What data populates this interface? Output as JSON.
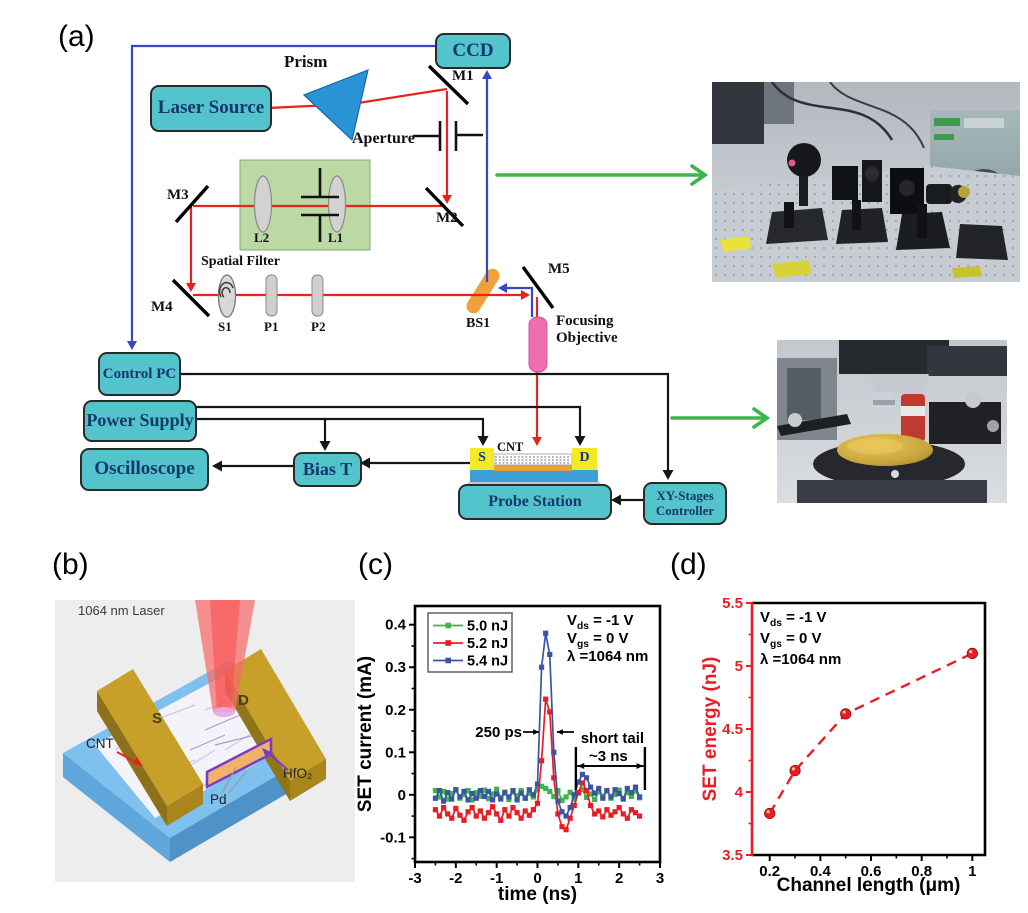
{
  "panels": {
    "a": "(a)",
    "b": "(b)",
    "c": "(c)",
    "d": "(d)"
  },
  "diagram": {
    "boxes": {
      "laser_source": "Laser Source",
      "ccd": "CCD",
      "control_pc": "Control PC",
      "power_supply": "Power Supply",
      "oscilloscope": "Oscilloscope",
      "bias_t": "Bias T",
      "probe_station": "Probe Station",
      "xy_stages_line1": "XY-Stages",
      "xy_stages_line2": "Controller"
    },
    "optics": {
      "prism": "Prism",
      "aperture": "Aperture",
      "m1": "M1",
      "m2": "M2",
      "m3": "M3",
      "m4": "M4",
      "m5": "M5",
      "l1": "L1",
      "l2": "L2",
      "spatial_filter": "Spatial Filter",
      "s1": "S1",
      "p1": "P1",
      "p2": "P2",
      "bs1": "BS1",
      "focusing_objective_line1": "Focusing",
      "focusing_objective_line2": "Objective"
    },
    "device": {
      "cnt": "CNT",
      "source": "S",
      "drain": "D"
    },
    "colors": {
      "box_fill": "#53c3cc",
      "box_text": "#13386b",
      "beam_red": "#e8231d",
      "beam_blue": "#3a45c4",
      "arrow_green": "#3cb54a",
      "wire_black": "#161616",
      "prism_blue": "#2a93d5",
      "bs1_orange": "#f0a13a",
      "objective_pink": "#ee6fad",
      "lens_box_green": "#bcd9a5"
    }
  },
  "panel_b": {
    "labels": {
      "laser": "1064 nm Laser",
      "source": "S",
      "drain": "D",
      "cnt": "CNT",
      "pd": "Pd",
      "hfo2": "HfO₂"
    }
  },
  "chart_data": [
    {
      "type": "line",
      "title": "SET current transients",
      "xlabel": "time (ns)",
      "ylabel": "SET current (mA)",
      "xlim": [
        -3,
        3
      ],
      "ylim": [
        -0.158,
        0.444
      ],
      "grid": false,
      "legend_position": "top-left",
      "xticks": {
        "major": [
          -3,
          -2,
          -1,
          0,
          1,
          2,
          3
        ],
        "labels": [
          "-3",
          "-2",
          "-1",
          "0",
          "1",
          "2",
          "3"
        ],
        "minor_step": 0.5
      },
      "yticks": {
        "major": [
          -0.1,
          0,
          0.1,
          0.2,
          0.3,
          0.4
        ],
        "labels": [
          "-0.1",
          "0",
          "0.1",
          "0.2",
          "0.3",
          "0.4"
        ],
        "minor_step": 0.05
      },
      "conditions": [
        "V~ds~ = -1 V",
        "V~gs~ =  0 V",
        "λ =1064 nm"
      ],
      "annotations": {
        "pulse_width": {
          "text": "250 ps"
        },
        "tail": {
          "line1": "short tail",
          "line2": "~3 ns",
          "x_from": 0.94,
          "x_to": 2.63
        }
      },
      "x_start": -2.5,
      "x_step": 0.1,
      "series": [
        {
          "name": "5.0 nJ",
          "color": "#3cb54a",
          "y": [
            0.01,
            -0.005,
            0.008,
            -0.01,
            0.003,
            0.012,
            -0.008,
            0.0,
            0.01,
            -0.012,
            0.005,
            -0.003,
            0.011,
            -0.009,
            0.002,
            0.013,
            -0.006,
            0.004,
            -0.011,
            0.007,
            -0.002,
            0.01,
            -0.008,
            0.003,
            -0.005,
            0.012,
            0.02,
            0.015,
            0.008,
            -0.004,
            0.01,
            -0.013,
            -0.005,
            0.006,
            -0.01,
            0.004,
            0.012,
            -0.006,
            0.002,
            -0.011,
            0.007,
            -0.003,
            0.01,
            -0.008,
            0.001,
            0.011,
            -0.009,
            0.005,
            -0.004,
            0.009,
            -0.007
          ]
        },
        {
          "name": "5.2 nJ",
          "color": "#ed1c24",
          "y": [
            -0.035,
            -0.05,
            -0.03,
            -0.045,
            -0.055,
            -0.032,
            -0.048,
            -0.06,
            -0.04,
            -0.03,
            -0.05,
            -0.038,
            -0.055,
            -0.042,
            -0.028,
            -0.045,
            -0.06,
            -0.035,
            -0.05,
            -0.03,
            -0.042,
            -0.055,
            -0.038,
            -0.048,
            -0.035,
            -0.02,
            0.08,
            0.225,
            0.195,
            0.04,
            -0.045,
            -0.075,
            -0.082,
            -0.055,
            -0.025,
            0.005,
            0.028,
            0.01,
            -0.025,
            -0.045,
            -0.038,
            -0.052,
            -0.035,
            -0.048,
            -0.04,
            -0.03,
            -0.045,
            -0.055,
            -0.035,
            -0.042,
            -0.05
          ]
        },
        {
          "name": "5.4 nJ",
          "color": "#3b54a5",
          "y": [
            -0.008,
            0.01,
            -0.015,
            0.005,
            -0.01,
            0.012,
            -0.005,
            0.008,
            -0.012,
            0.003,
            -0.008,
            0.01,
            -0.004,
            0.008,
            -0.012,
            0.002,
            -0.01,
            0.006,
            -0.005,
            0.01,
            -0.012,
            0.004,
            -0.008,
            0.012,
            0.0,
            0.025,
            0.3,
            0.38,
            0.33,
            0.1,
            -0.015,
            -0.04,
            -0.05,
            -0.03,
            0.0,
            0.03,
            0.048,
            0.04,
            0.018,
            0.004,
            0.015,
            -0.008,
            0.01,
            -0.005,
            0.012,
            0.003,
            -0.01,
            0.015,
            0.005,
            0.018,
            -0.005
          ]
        }
      ]
    },
    {
      "type": "scatter",
      "title": "SET energy vs channel length",
      "xlabel": "Channel length (μm)",
      "ylabel": "SET energy (nJ)",
      "xlim": [
        0.13,
        1.05
      ],
      "ylim": [
        3.5,
        5.5
      ],
      "grid": false,
      "line_style": "dashed",
      "color": "#ed1c24",
      "xticks": {
        "major": [
          0.2,
          0.4,
          0.6,
          0.8,
          1.0
        ],
        "labels": [
          "0.2",
          "0.4",
          "0.6",
          "0.8",
          "1"
        ],
        "minor_step": 0.1
      },
      "yticks": {
        "major": [
          3.5,
          4.0,
          4.5,
          5.0,
          5.5
        ],
        "labels": [
          "3.5",
          "4",
          "4.5",
          "5",
          "5.5"
        ],
        "minor_step": 0.25
      },
      "conditions": [
        "V~ds~ = -1 V",
        "V~gs~ =  0 V",
        "λ  =1064 nm"
      ],
      "x": [
        0.2,
        0.3,
        0.5,
        1.0
      ],
      "y": [
        3.83,
        4.17,
        4.62,
        5.1
      ]
    }
  ]
}
